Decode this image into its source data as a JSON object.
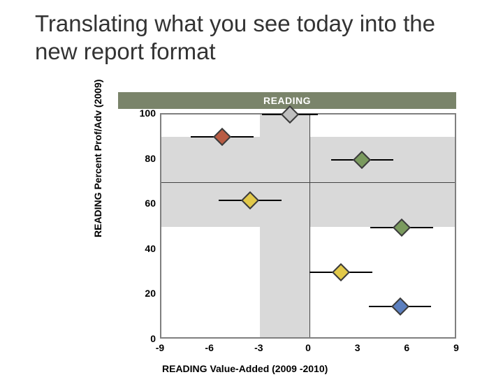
{
  "title": "Translating what you see today into the new report format",
  "chart": {
    "type": "scatter",
    "header_label": "READING",
    "ylabel": "READING Percent Prof/Adv (2009)",
    "xlabel": "READING Value-Added (2009 -2010)",
    "header_bg": "#7a846a",
    "header_fg": "#ffffff",
    "background_color": "#ffffff",
    "border_color": "#7f7f7f",
    "band_color": "#d9d9d9",
    "axis_color": "#444444",
    "xlim": [
      -9,
      9
    ],
    "ylim": [
      0,
      100
    ],
    "xticks": [
      -9,
      -6,
      -3,
      0,
      3,
      6,
      9
    ],
    "yticks": [
      0,
      20,
      40,
      60,
      80,
      100
    ],
    "tick_fontsize": 14,
    "label_fontsize": 14,
    "cross_band_x": [
      -3,
      0
    ],
    "cross_band_y": [
      50,
      90
    ],
    "grid": false,
    "diamond_size": 26,
    "whisker_width": 2,
    "points": [
      {
        "x": -5.3,
        "y": 90,
        "x_lo": -7.2,
        "x_hi": -3.4,
        "fill": "#b85c44",
        "stroke": "#3b3b3b"
      },
      {
        "x": -1.2,
        "y": 100,
        "x_lo": -2.9,
        "x_hi": 0.5,
        "fill": "#bfbfbf",
        "stroke": "#3b3b3b"
      },
      {
        "x": -3.6,
        "y": 62,
        "x_lo": -5.5,
        "x_hi": -1.7,
        "fill": "#e2c94a",
        "stroke": "#3b3b3b"
      },
      {
        "x": 3.2,
        "y": 80,
        "x_lo": 1.3,
        "x_hi": 5.1,
        "fill": "#7a9a5e",
        "stroke": "#3b3b3b"
      },
      {
        "x": 5.6,
        "y": 50,
        "x_lo": 3.7,
        "x_hi": 7.5,
        "fill": "#7a9a5e",
        "stroke": "#3b3b3b"
      },
      {
        "x": 1.9,
        "y": 30,
        "x_lo": 0.0,
        "x_hi": 3.8,
        "fill": "#e2c94a",
        "stroke": "#3b3b3b"
      },
      {
        "x": 5.5,
        "y": 15,
        "x_lo": 3.6,
        "x_hi": 7.4,
        "fill": "#5b7fbf",
        "stroke": "#3b3b3b"
      }
    ]
  }
}
